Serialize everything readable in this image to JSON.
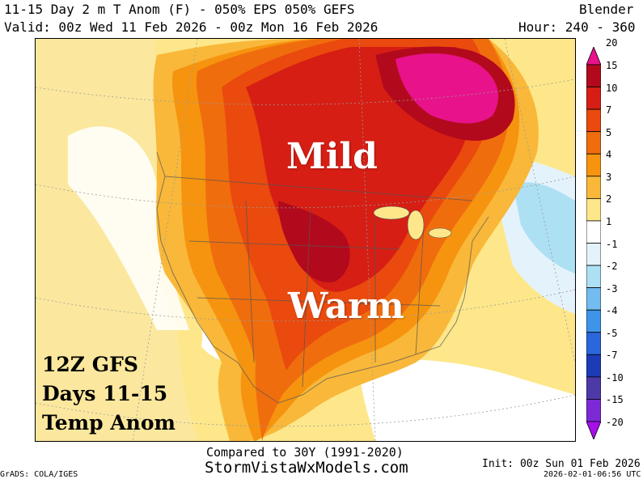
{
  "header": {
    "title_line": "11-15 Day 2 m T Anom (F) - 050% EPS 050% GEFS",
    "model_name": "Blender",
    "valid_line": "Valid: 00z Wed 11 Feb 2026 - 00z Mon 16 Feb 2026",
    "hour_range": "Hour: 240 - 360"
  },
  "map": {
    "label_north": "Mild",
    "label_south": "Warm",
    "inset_text": {
      "line1": "12Z GFS",
      "line2": "Days 11-15",
      "line3": "Temp Anom"
    }
  },
  "colorbar": {
    "labels": [
      "20",
      "15",
      "10",
      "7",
      "5",
      "4",
      "3",
      "2",
      "1",
      "-1",
      "-2",
      "-3",
      "-4",
      "-5",
      "-7",
      "-10",
      "-15",
      "-20"
    ],
    "colors": [
      "#e8128a",
      "#b20a1c",
      "#d61e14",
      "#ea4a0e",
      "#f06d0e",
      "#f6940f",
      "#f9b83a",
      "#fde78a",
      "#ffffff",
      "#e4f3fb",
      "#aee0f4",
      "#72bcef",
      "#3d94e9",
      "#2a66dc",
      "#1c3cb7",
      "#4d3aa8",
      "#7d2ad6",
      "#a50fe9"
    ]
  },
  "footer": {
    "compared_to": "Compared to 30Y (1991-2020)",
    "site": "StormVistaWxModels.com",
    "grads": "GrADS: COLA/IGES",
    "init": "Init: 00z Sun 01 Feb 2026",
    "timestamp": "2026-02-01-06:56 UTC"
  }
}
